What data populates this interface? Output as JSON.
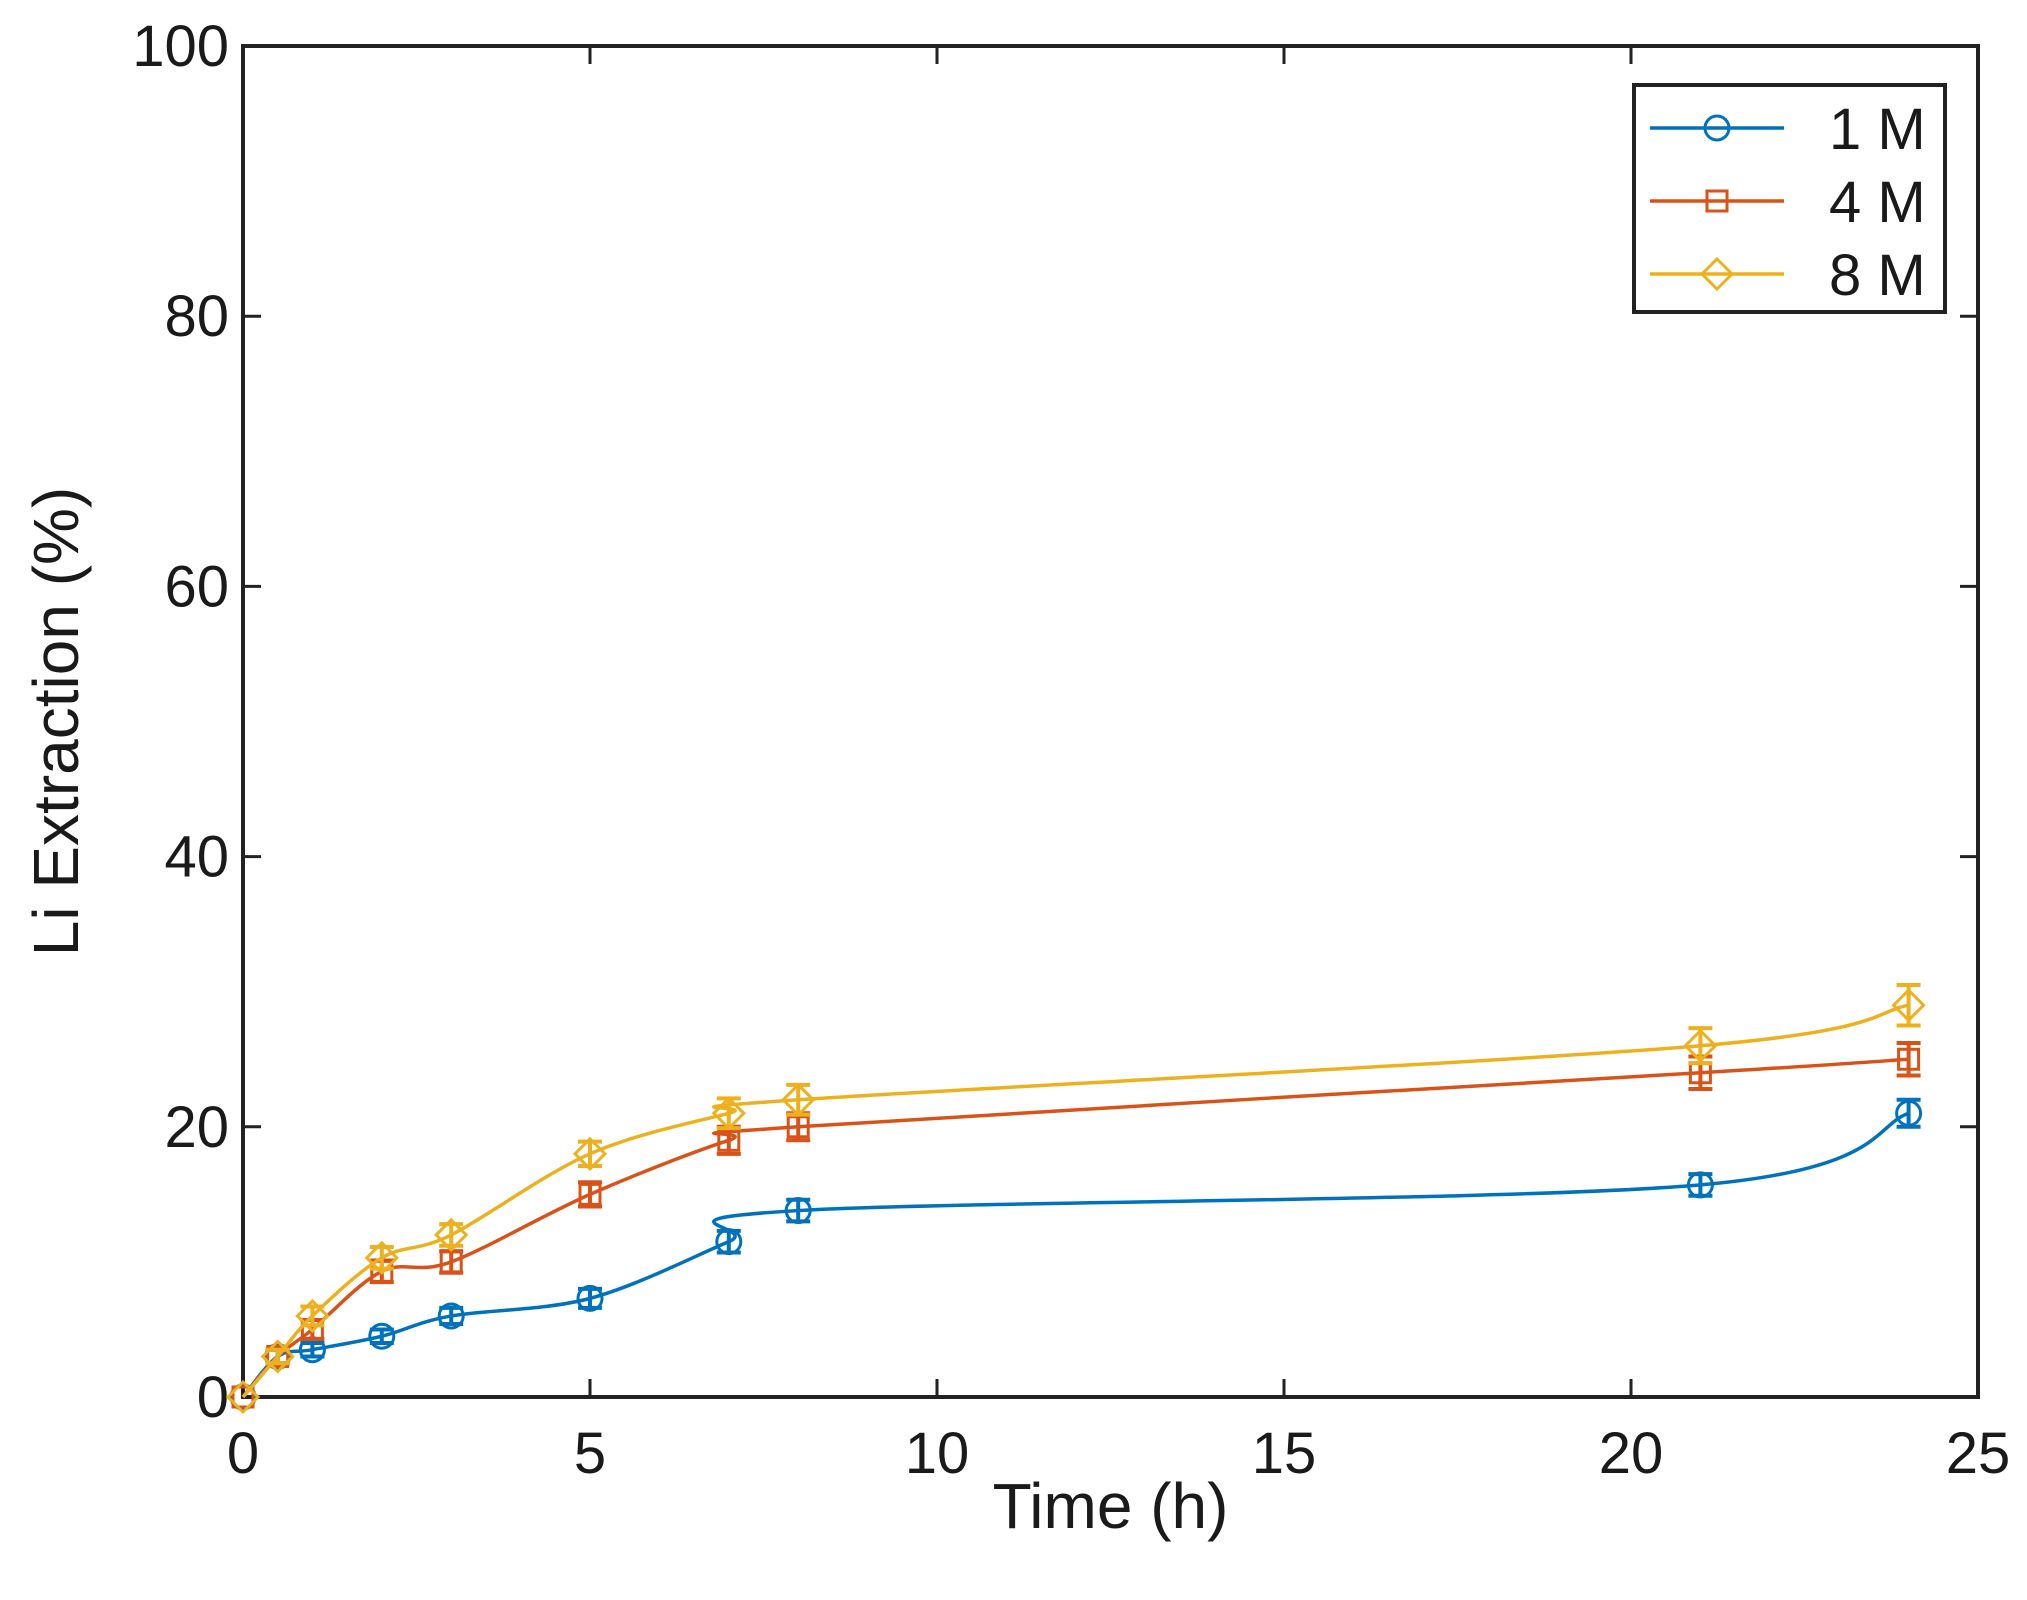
{
  "chart_data": {
    "type": "line",
    "title": "",
    "xlabel": "Time (h)",
    "ylabel": "Li Extraction (%)",
    "xlim": [
      0,
      25
    ],
    "ylim": [
      0,
      100
    ],
    "xticks": [
      "0",
      "5",
      "10",
      "15",
      "20",
      "25"
    ],
    "yticks": [
      "0",
      "20",
      "40",
      "60",
      "80",
      "100"
    ],
    "grid": false,
    "legend_position": "top-right",
    "x": [
      0,
      0.5,
      1,
      2,
      3,
      5,
      7,
      8,
      21,
      24
    ],
    "series": [
      {
        "name": "1 M",
        "color": "#0072BD",
        "marker": "circle",
        "values": [
          0,
          3,
          3.5,
          4.5,
          6,
          7.3,
          11.5,
          13.8,
          15.7,
          21
        ],
        "errors": [
          0,
          0.5,
          0.5,
          0.5,
          0.6,
          0.7,
          0.8,
          0.8,
          0.8,
          1.0
        ]
      },
      {
        "name": "4 M",
        "color": "#D95319",
        "marker": "square",
        "values": [
          0,
          3,
          5,
          9.3,
          10,
          15,
          19,
          20,
          24,
          25
        ],
        "errors": [
          0,
          0.5,
          0.7,
          0.8,
          0.8,
          0.9,
          1.0,
          1.0,
          1.2,
          1.2
        ]
      },
      {
        "name": "8 M",
        "color": "#EDB120",
        "marker": "diamond",
        "values": [
          0,
          3,
          6,
          10.3,
          12,
          18,
          21,
          22,
          26,
          29
        ],
        "errors": [
          0,
          0.5,
          0.7,
          0.8,
          0.8,
          0.9,
          1.1,
          1.1,
          1.3,
          1.5
        ]
      }
    ]
  }
}
